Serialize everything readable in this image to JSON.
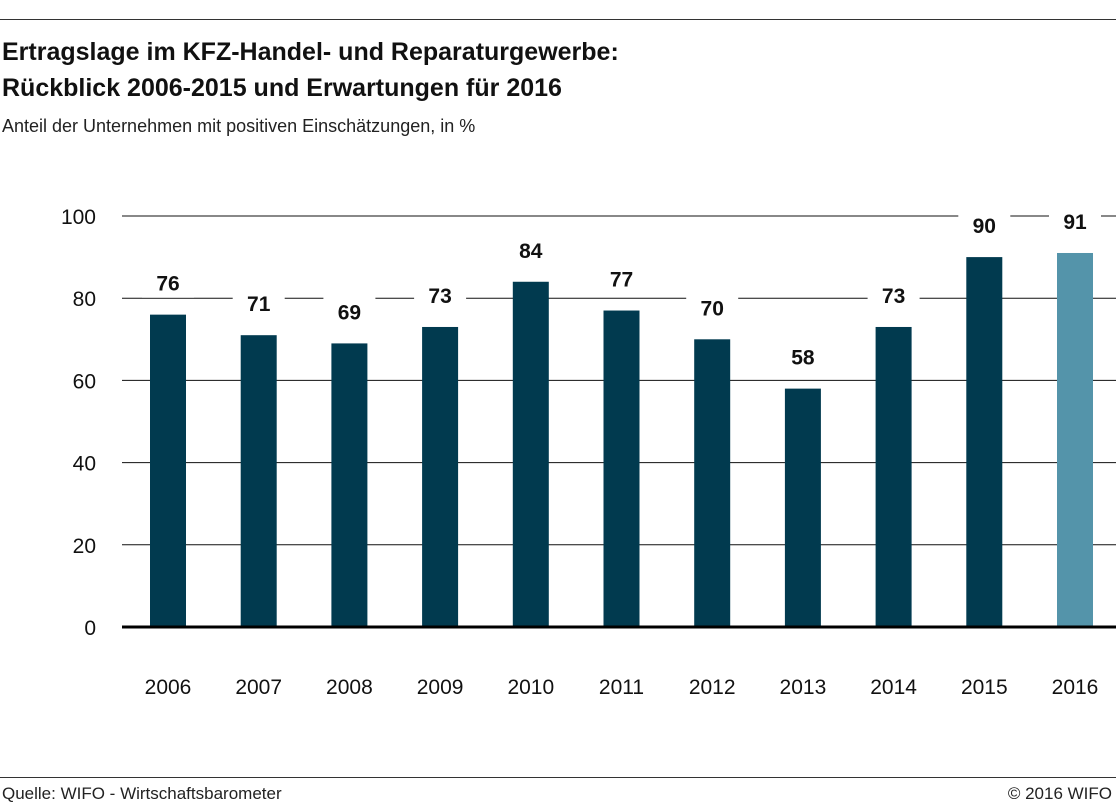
{
  "header": {
    "title_line1": "Ertragslage im KFZ-Handel- und Reparaturgewerbe:",
    "title_line2": "Rückblick 2006-2015 und Erwartungen für 2016",
    "subtitle": "Anteil der Unternehmen mit positiven Einschätzungen, in %"
  },
  "footer": {
    "source": "Quelle: WIFO - Wirtschaftsbarometer",
    "copyright": "© 2016 WIFO"
  },
  "colors": {
    "bar": "#013A4F",
    "bar_highlight": "#5494AA",
    "grid": "#111111"
  },
  "chart_data": {
    "type": "bar",
    "title": "Ertragslage im KFZ-Handel- und Reparaturgewerbe: Rückblick 2006-2015 und Erwartungen für 2016",
    "subtitle": "Anteil der Unternehmen mit positiven Einschätzungen, in %",
    "xlabel": "",
    "ylabel": "",
    "categories": [
      "2006",
      "2007",
      "2008",
      "2009",
      "2010",
      "2011",
      "2012",
      "2013",
      "2014",
      "2015",
      "2016"
    ],
    "values": [
      76,
      71,
      69,
      73,
      84,
      77,
      70,
      58,
      73,
      90,
      91
    ],
    "highlighted_category": "2016",
    "ylim": [
      0,
      100
    ],
    "yticks": [
      0,
      20,
      40,
      60,
      80,
      100
    ],
    "grid": true,
    "legend": "none"
  }
}
